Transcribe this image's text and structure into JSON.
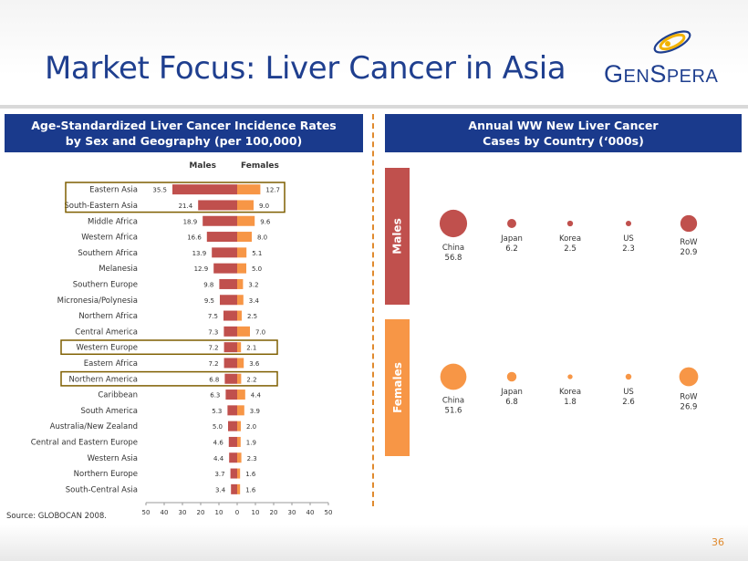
{
  "title": "Market Focus: Liver Cancer in Asia",
  "logo": {
    "brand": "GenSpera",
    "part1_big": "G",
    "part1_small": "EN",
    "part2_big": "S",
    "part2_small": "PERA"
  },
  "left_header": {
    "line1": "Age-Standardized Liver Cancer Incidence  Rates",
    "line2": "by Sex and Geography (per 100,000)"
  },
  "right_header": {
    "line1": "Annual WW New Liver Cancer",
    "line2": "Cases by Country (‘000s)"
  },
  "source": "Source: GLOBOCAN 2008.",
  "page_number": "36",
  "colors": {
    "navy": "#1a3a8c",
    "males": "#c0504d",
    "females": "#f79646",
    "highlight": "#7f5f00"
  },
  "chart_data": [
    {
      "type": "bar",
      "orientation": "horizontal-butterfly",
      "categories": [
        "Eastern Asia",
        "South-Eastern Asia",
        "Middle Africa",
        "Western Africa",
        "Southern Africa",
        "Melanesia",
        "Southern Europe",
        "Micronesia/Polynesia",
        "Northern Africa",
        "Central America",
        "Western Europe",
        "Eastern Africa",
        "Northern America",
        "Caribbean",
        "South America",
        "Australia/New Zealand",
        "Central and Eastern Europe",
        "Western Asia",
        "Northern Europe",
        "South-Central Asia"
      ],
      "series": [
        {
          "name": "Males",
          "values": [
            35.5,
            21.4,
            18.9,
            16.6,
            13.9,
            12.9,
            9.8,
            9.5,
            7.5,
            7.3,
            7.2,
            7.2,
            6.8,
            6.3,
            5.3,
            5.0,
            4.6,
            4.4,
            3.7,
            3.4
          ],
          "labels": [
            "35.5",
            "21.4",
            "18.9",
            "16.6",
            "13.9",
            "12.9",
            "9.8",
            "9.5",
            "7.5",
            "7.3",
            "7.2",
            "7.2",
            "6.8",
            "6.3",
            "5.3",
            "5.0",
            "4.6",
            "4.4",
            "3.7",
            "3.4"
          ]
        },
        {
          "name": "Females",
          "values": [
            12.7,
            9.0,
            9.6,
            8.0,
            5.1,
            5.0,
            3.2,
            3.4,
            2.5,
            7.0,
            2.1,
            3.6,
            2.2,
            4.4,
            3.9,
            2.0,
            1.9,
            2.3,
            1.6,
            1.6
          ],
          "labels": [
            "12.7",
            "9.0",
            "9.6",
            "8.0",
            "5.1",
            "5.0",
            "3.2",
            "3.4",
            "2.5",
            "7.0",
            "2.1",
            "3.6",
            "2.2",
            "4.4",
            "3.9",
            "2.0",
            "1.9",
            "2.3",
            "1.6",
            "1.6"
          ]
        }
      ],
      "xticks": [
        "50",
        "40",
        "30",
        "20",
        "10",
        "0",
        "10",
        "20",
        "30",
        "40",
        "50"
      ],
      "xlim": [
        -50,
        50
      ],
      "highlighted_rows": [
        "Eastern Asia",
        "South-Eastern Asia",
        "Western Europe",
        "Northern America"
      ]
    },
    {
      "type": "scatter",
      "encoding": "bubble",
      "categories": [
        "China",
        "Japan",
        "Korea",
        "US",
        "RoW"
      ],
      "series": [
        {
          "name": "Males",
          "values": [
            56.8,
            6.2,
            2.5,
            2.3,
            20.9
          ],
          "labels": [
            "56.8",
            "6.2",
            "2.5",
            "2.3",
            "20.9"
          ]
        },
        {
          "name": "Females",
          "values": [
            51.6,
            6.8,
            1.8,
            2.6,
            26.9
          ],
          "labels": [
            "51.6",
            "6.8",
            "1.8",
            "2.6",
            "26.9"
          ]
        }
      ]
    }
  ]
}
